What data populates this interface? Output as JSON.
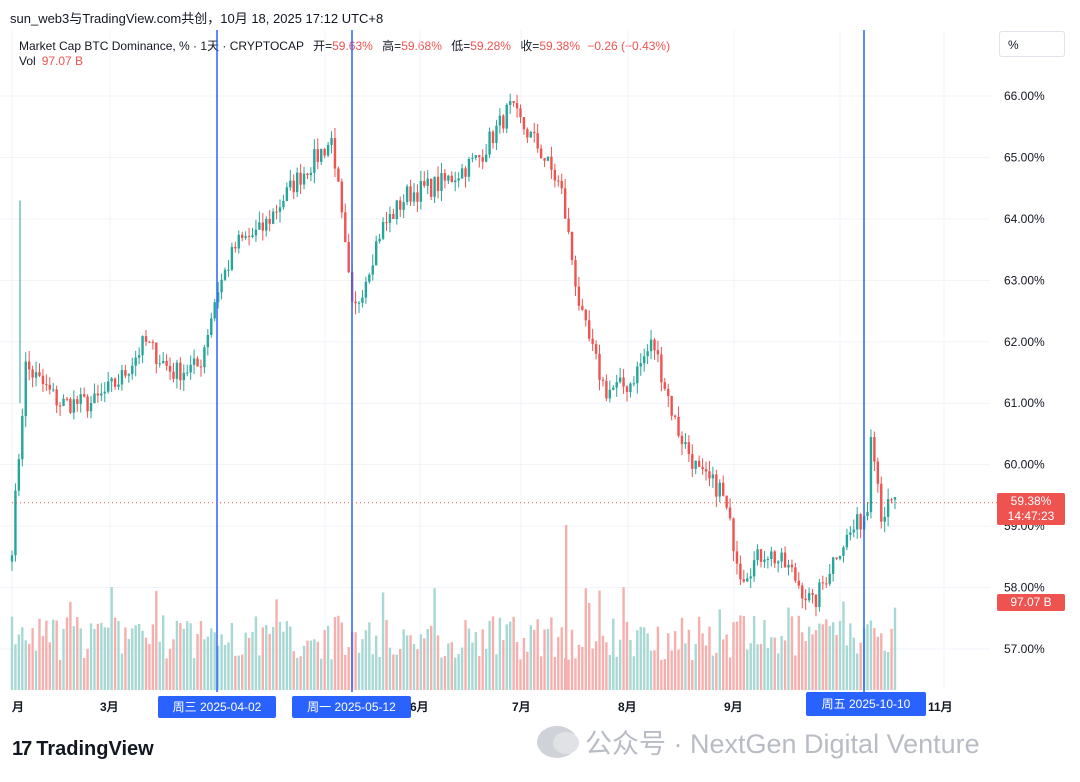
{
  "header": {
    "title": "sun_web3与TradingView.com共创，10月 18, 2025 17:12 UTC+8"
  },
  "legend": {
    "symbol": "Market Cap BTC Dominance, % · 1天 · CRYPTOCAP",
    "open_label": "开=",
    "open": "59.63%",
    "high_label": "高=",
    "high": "59.68%",
    "low_label": "低=",
    "low": "59.28%",
    "close_label": "收=",
    "close": "59.38%",
    "change": "−0.26 (−0.43%)",
    "vol_label": "Vol",
    "vol": "97.07 B"
  },
  "unit_button": "%",
  "price_tag": {
    "value": "59.38%",
    "countdown": "14:47:23"
  },
  "vol_tag": "97.07 B",
  "markers": [
    {
      "label": "周三 2025-04-02"
    },
    {
      "label": "周一 2025-05-12"
    },
    {
      "label": "周五 2025-10-10"
    }
  ],
  "colors": {
    "up": "#26a69a",
    "down": "#ef5350",
    "up_vol": "#a7d8d3",
    "down_vol": "#f5b0ae",
    "marker": "#2962ff"
  },
  "brand": {
    "logo": "17",
    "name": "TradingView"
  },
  "watermark": {
    "text": "公众号 · NextGen Digital Venture"
  },
  "chart_data": {
    "type": "candlestick",
    "title": "Market Cap BTC Dominance, %",
    "ylim": [
      56.7,
      66.5
    ],
    "y_ticks": [
      "66.00%",
      "65.00%",
      "64.00%",
      "63.00%",
      "62.00%",
      "61.00%",
      "60.00%",
      "59.00%",
      "58.00%",
      "57.00%"
    ],
    "x_ticks": [
      "月",
      "3月",
      "6月",
      "7月",
      "8月",
      "9月",
      "11月"
    ],
    "current_price": 59.38,
    "series": [
      {
        "name": "Market Cap BTC Dominance",
        "points_approx": [
          [
            "2025-02-01",
            58.7
          ],
          [
            "2025-02-05",
            61.6
          ],
          [
            "2025-02-15",
            61.0
          ],
          [
            "2025-02-25",
            61.0
          ],
          [
            "2025-03-05",
            61.4
          ],
          [
            "2025-03-12",
            62.0
          ],
          [
            "2025-03-20",
            61.5
          ],
          [
            "2025-03-28",
            61.6
          ],
          [
            "2025-04-02",
            62.8
          ],
          [
            "2025-04-08",
            63.6
          ],
          [
            "2025-04-15",
            63.8
          ],
          [
            "2025-04-25",
            64.6
          ],
          [
            "2025-05-06",
            65.3
          ],
          [
            "2025-05-12",
            62.4
          ],
          [
            "2025-05-20",
            63.8
          ],
          [
            "2025-05-28",
            64.4
          ],
          [
            "2025-06-08",
            64.6
          ],
          [
            "2025-06-18",
            65.0
          ],
          [
            "2025-06-27",
            65.8
          ],
          [
            "2025-07-05",
            65.2
          ],
          [
            "2025-07-12",
            64.5
          ],
          [
            "2025-07-18",
            62.4
          ],
          [
            "2025-07-25",
            61.2
          ],
          [
            "2025-08-01",
            61.3
          ],
          [
            "2025-08-08",
            62.0
          ],
          [
            "2025-08-15",
            60.6
          ],
          [
            "2025-08-22",
            59.8
          ],
          [
            "2025-08-28",
            59.6
          ],
          [
            "2025-09-03",
            58.2
          ],
          [
            "2025-09-10",
            58.6
          ],
          [
            "2025-09-17",
            58.3
          ],
          [
            "2025-09-24",
            57.7
          ],
          [
            "2025-10-01",
            58.6
          ],
          [
            "2025-10-08",
            59.1
          ],
          [
            "2025-10-10",
            59.3
          ],
          [
            "2025-10-11",
            60.7
          ],
          [
            "2025-10-14",
            59.2
          ],
          [
            "2025-10-18",
            59.38
          ]
        ]
      }
    ],
    "volume_series": {
      "name": "Vol",
      "last": "97.07 B"
    }
  }
}
